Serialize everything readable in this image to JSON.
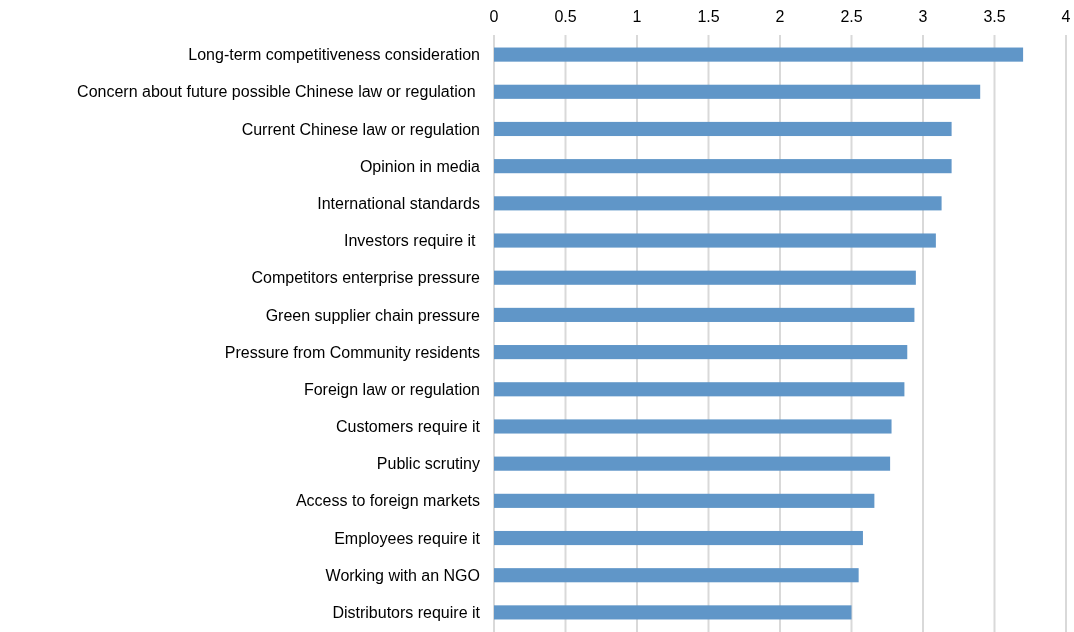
{
  "chart_data": {
    "type": "bar",
    "orientation": "horizontal",
    "categories": [
      "Long-term competitiveness consideration",
      "Concern about future possible Chinese law or regulation ",
      "Current Chinese law or regulation",
      "Opinion in media",
      "International standards",
      "Investors require it ",
      "Competitors enterprise pressure",
      "Green supplier chain pressure",
      "Pressure from Community residents",
      "Foreign law or regulation",
      "Customers require it",
      "Public scrutiny",
      "Access to foreign markets",
      "Employees require it",
      "Working with an NGO",
      "Distributors require it"
    ],
    "values": [
      3.7,
      3.4,
      3.2,
      3.2,
      3.13,
      3.09,
      2.95,
      2.94,
      2.89,
      2.87,
      2.78,
      2.77,
      2.66,
      2.58,
      2.55,
      2.5
    ],
    "color": "#6096c8",
    "xlim": [
      0,
      4
    ],
    "xticks": [
      0,
      0.5,
      1,
      1.5,
      2,
      2.5,
      3,
      3.5,
      4
    ],
    "grid": "x"
  }
}
